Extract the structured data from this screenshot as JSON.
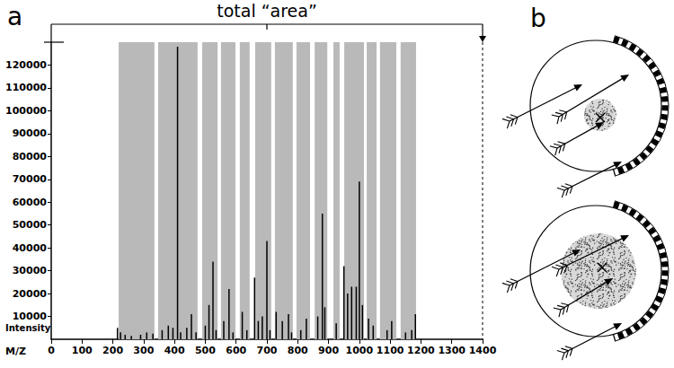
{
  "chart_data": {
    "type": "bar",
    "panel": "a",
    "annotation": "total “area”",
    "x_label": "M/Z",
    "y_label": "Intensity",
    "x": [
      215,
      225,
      240,
      260,
      290,
      310,
      330,
      360,
      380,
      395,
      410,
      420,
      440,
      455,
      470,
      500,
      512,
      525,
      535,
      560,
      577,
      590,
      620,
      635,
      660,
      672,
      685,
      700,
      710,
      730,
      750,
      770,
      780,
      810,
      828,
      865,
      880,
      888,
      925,
      950,
      962,
      975,
      990,
      1000,
      1010,
      1030,
      1045,
      1090,
      1105,
      1150,
      1170,
      1182
    ],
    "values": [
      5000,
      3000,
      2000,
      1500,
      2000,
      3000,
      2500,
      4000,
      6000,
      5000,
      128000,
      3000,
      5000,
      11000,
      3000,
      6000,
      15000,
      34000,
      4000,
      8000,
      22000,
      3000,
      12000,
      4000,
      27000,
      8000,
      10000,
      43000,
      4000,
      12000,
      8000,
      11000,
      3000,
      4000,
      9000,
      10000,
      55000,
      14000,
      7000,
      32000,
      20000,
      23000,
      23000,
      69000,
      15000,
      9000,
      6000,
      4000,
      8000,
      3000,
      4000,
      11000
    ],
    "color": "#000000",
    "bands": [
      [
        219,
        335
      ],
      [
        347,
        475
      ],
      [
        490,
        540
      ],
      [
        551,
        598
      ],
      [
        612,
        644
      ],
      [
        662,
        714
      ],
      [
        726,
        784
      ],
      [
        796,
        840
      ],
      [
        855,
        896
      ],
      [
        916,
        936
      ],
      [
        951,
        1015
      ],
      [
        1024,
        1056
      ],
      [
        1067,
        1120
      ],
      [
        1134,
        1184
      ]
    ],
    "xlim": [
      0,
      1400
    ],
    "xticks": [
      0,
      100,
      200,
      300,
      400,
      500,
      600,
      700,
      800,
      900,
      1000,
      1100,
      1200,
      1300,
      1400
    ],
    "ylim": [
      0,
      130000
    ],
    "yticks": [
      10000,
      20000,
      30000,
      40000,
      50000,
      60000,
      70000,
      80000,
      90000,
      100000,
      110000,
      120000
    ],
    "grid": false
  },
  "diagram": {
    "panel": "b"
  }
}
